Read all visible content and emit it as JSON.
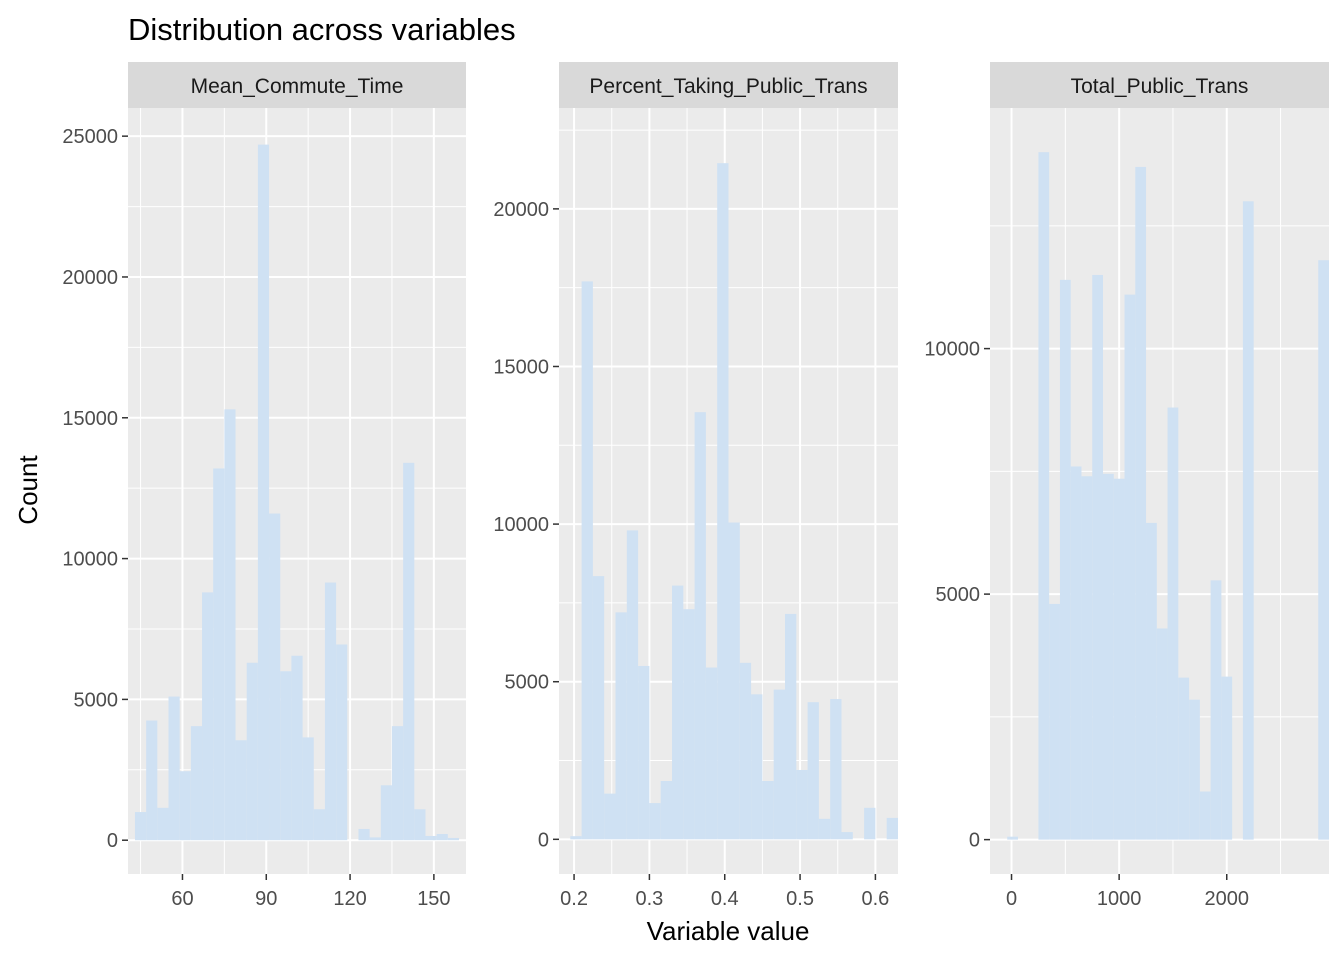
{
  "title": "Distribution across variables",
  "xlabel": "Variable value",
  "ylabel": "Count",
  "colors": {
    "bar": "#cfe1f3",
    "panel": "#ebebeb",
    "strip": "#d9d9d9",
    "grid": "#ffffff",
    "tick": "#333333"
  },
  "chart_data": [
    {
      "type": "bar",
      "title": "Mean_Commute_Time",
      "xlim": [
        40.5,
        161.5
      ],
      "ylim": [
        -1200,
        26000
      ],
      "xticks": [
        60,
        90,
        120,
        150
      ],
      "yticks": [
        0,
        5000,
        10000,
        15000,
        20000,
        25000
      ],
      "bins": [
        [
          43,
          47,
          1000
        ],
        [
          47,
          51,
          4250
        ],
        [
          51,
          55,
          1150
        ],
        [
          55,
          59,
          5100
        ],
        [
          59,
          63,
          2450
        ],
        [
          63,
          67,
          4050
        ],
        [
          67,
          71,
          8800
        ],
        [
          71,
          75,
          13200
        ],
        [
          75,
          79,
          15300
        ],
        [
          79,
          83,
          3550
        ],
        [
          83,
          87,
          6300
        ],
        [
          87,
          91,
          24700
        ],
        [
          91,
          95,
          11600
        ],
        [
          95,
          99,
          6000
        ],
        [
          99,
          103,
          6550
        ],
        [
          103,
          107,
          3650
        ],
        [
          107,
          111,
          1100
        ],
        [
          111,
          115,
          9150
        ],
        [
          115,
          119,
          6950
        ],
        [
          119,
          123,
          0
        ],
        [
          123,
          127,
          400
        ],
        [
          127,
          131,
          100
        ],
        [
          131,
          135,
          1950
        ],
        [
          135,
          139,
          4050
        ],
        [
          139,
          143,
          13400
        ],
        [
          143,
          147,
          1100
        ],
        [
          147,
          151,
          150
        ],
        [
          151,
          155,
          220
        ],
        [
          155,
          159,
          80
        ]
      ]
    },
    {
      "type": "bar",
      "title": "Percent_Taking_Public_Trans",
      "xlim": [
        0.18,
        0.63
      ],
      "ylim": [
        -1100,
        23200
      ],
      "xticks": [
        0.2,
        0.3,
        0.4,
        0.5,
        0.6
      ],
      "yticks": [
        0,
        5000,
        10000,
        15000,
        20000
      ],
      "bins": [
        [
          0.195,
          0.21,
          100
        ],
        [
          0.21,
          0.225,
          17700
        ],
        [
          0.225,
          0.24,
          8350
        ],
        [
          0.24,
          0.255,
          1450
        ],
        [
          0.255,
          0.27,
          7200
        ],
        [
          0.27,
          0.285,
          9800
        ],
        [
          0.285,
          0.3,
          5500
        ],
        [
          0.3,
          0.315,
          1150
        ],
        [
          0.315,
          0.33,
          1850
        ],
        [
          0.33,
          0.345,
          8050
        ],
        [
          0.345,
          0.36,
          7300
        ],
        [
          0.36,
          0.375,
          13550
        ],
        [
          0.375,
          0.39,
          5450
        ],
        [
          0.39,
          0.405,
          21450
        ],
        [
          0.405,
          0.42,
          10050
        ],
        [
          0.42,
          0.435,
          5600
        ],
        [
          0.435,
          0.45,
          4600
        ],
        [
          0.45,
          0.465,
          1850
        ],
        [
          0.465,
          0.48,
          4750
        ],
        [
          0.48,
          0.495,
          7150
        ],
        [
          0.495,
          0.51,
          2200
        ],
        [
          0.51,
          0.525,
          4350
        ],
        [
          0.525,
          0.54,
          650
        ],
        [
          0.54,
          0.555,
          4450
        ],
        [
          0.555,
          0.57,
          230
        ],
        [
          0.57,
          0.585,
          0
        ],
        [
          0.585,
          0.6,
          1000
        ],
        [
          0.6,
          0.615,
          0
        ],
        [
          0.615,
          0.63,
          680
        ]
      ]
    },
    {
      "type": "bar",
      "title": "Total_Public_Trans",
      "xlim": [
        -200,
        2950
      ],
      "ylim": [
        -700,
        14900
      ],
      "xticks": [
        0,
        1000,
        2000
      ],
      "yticks": [
        0,
        5000,
        10000
      ],
      "bins": [
        [
          -40,
          60,
          60
        ],
        [
          250,
          350,
          14000
        ],
        [
          350,
          450,
          4800
        ],
        [
          450,
          550,
          11400
        ],
        [
          550,
          650,
          7600
        ],
        [
          650,
          750,
          7400
        ],
        [
          750,
          850,
          11500
        ],
        [
          850,
          950,
          7450
        ],
        [
          950,
          1050,
          7350
        ],
        [
          1050,
          1150,
          11100
        ],
        [
          1150,
          1250,
          13700
        ],
        [
          1250,
          1350,
          6450
        ],
        [
          1350,
          1450,
          4300
        ],
        [
          1450,
          1550,
          8800
        ],
        [
          1550,
          1650,
          3300
        ],
        [
          1650,
          1750,
          2850
        ],
        [
          1750,
          1850,
          980
        ],
        [
          1850,
          1950,
          5280
        ],
        [
          1950,
          2050,
          3320
        ],
        [
          2150,
          2250,
          13000
        ],
        [
          2850,
          2950,
          11800
        ]
      ]
    }
  ]
}
